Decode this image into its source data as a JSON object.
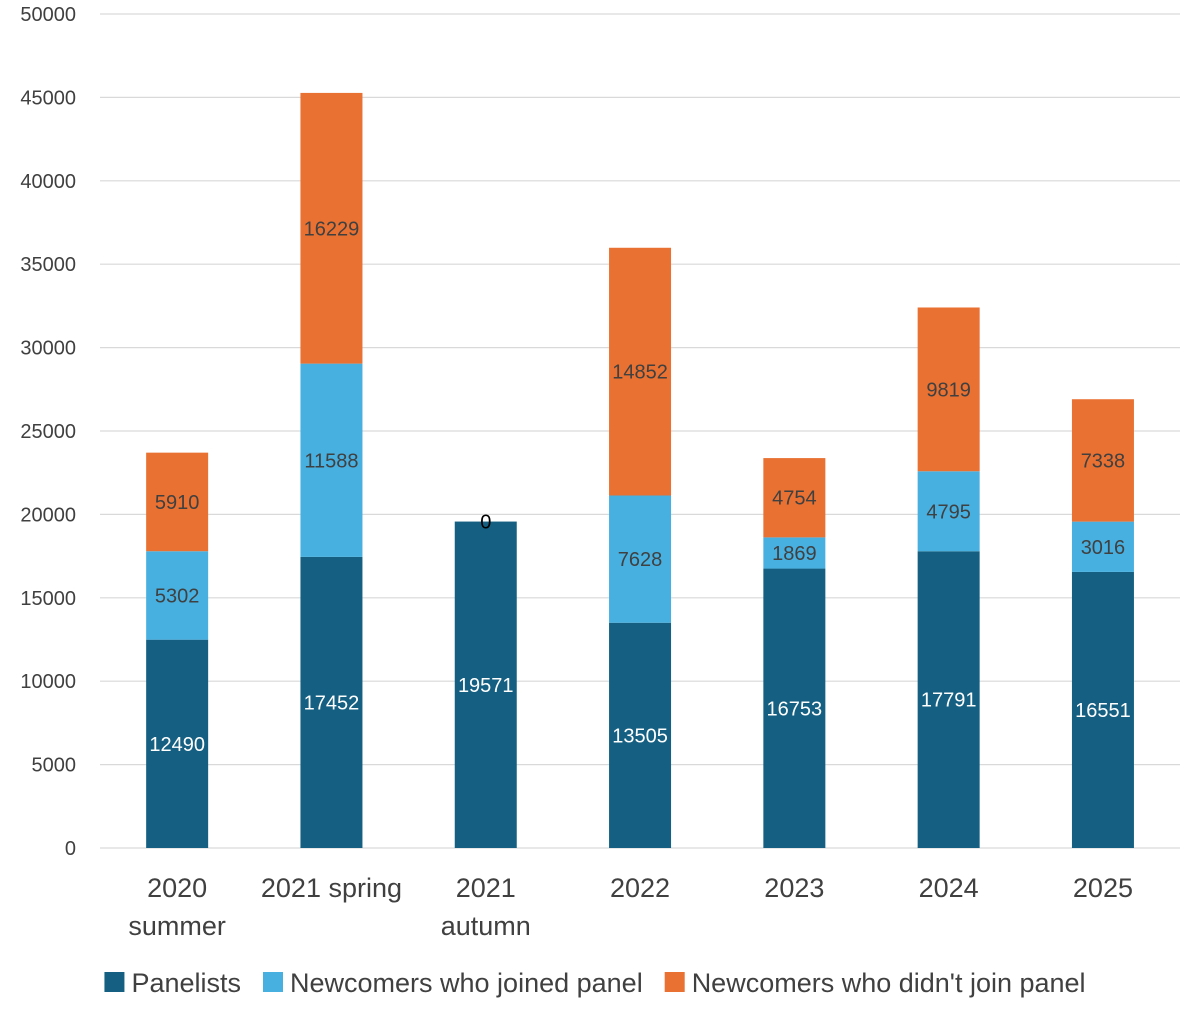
{
  "chart_data": {
    "type": "bar",
    "stacked": true,
    "title": "",
    "xlabel": "",
    "ylabel": "",
    "ylim": [
      0,
      50000
    ],
    "yticks": [
      0,
      5000,
      10000,
      15000,
      20000,
      25000,
      30000,
      35000,
      40000,
      45000,
      50000
    ],
    "grid": true,
    "legend": "bottom",
    "categories": [
      [
        "2020",
        "summer"
      ],
      [
        "2021 spring"
      ],
      [
        "2021",
        "autumn"
      ],
      [
        "2022"
      ],
      [
        "2023"
      ],
      [
        "2024"
      ],
      [
        "2025"
      ]
    ],
    "series": [
      {
        "name": "Panelists",
        "color": "#156082",
        "label_color": "#ffffff",
        "values": [
          12490,
          17452,
          19571,
          13505,
          16753,
          17791,
          16551
        ]
      },
      {
        "name": "Newcomers who joined panel",
        "color": "#47b0e0",
        "label_color": "#404040",
        "values": [
          5302,
          11588,
          0,
          7628,
          1869,
          4795,
          3016
        ]
      },
      {
        "name": "Newcomers who didn't join panel",
        "color": "#e97132",
        "label_color": "#404040",
        "values": [
          5910,
          16229,
          null,
          14852,
          4754,
          9819,
          7338
        ]
      }
    ]
  }
}
